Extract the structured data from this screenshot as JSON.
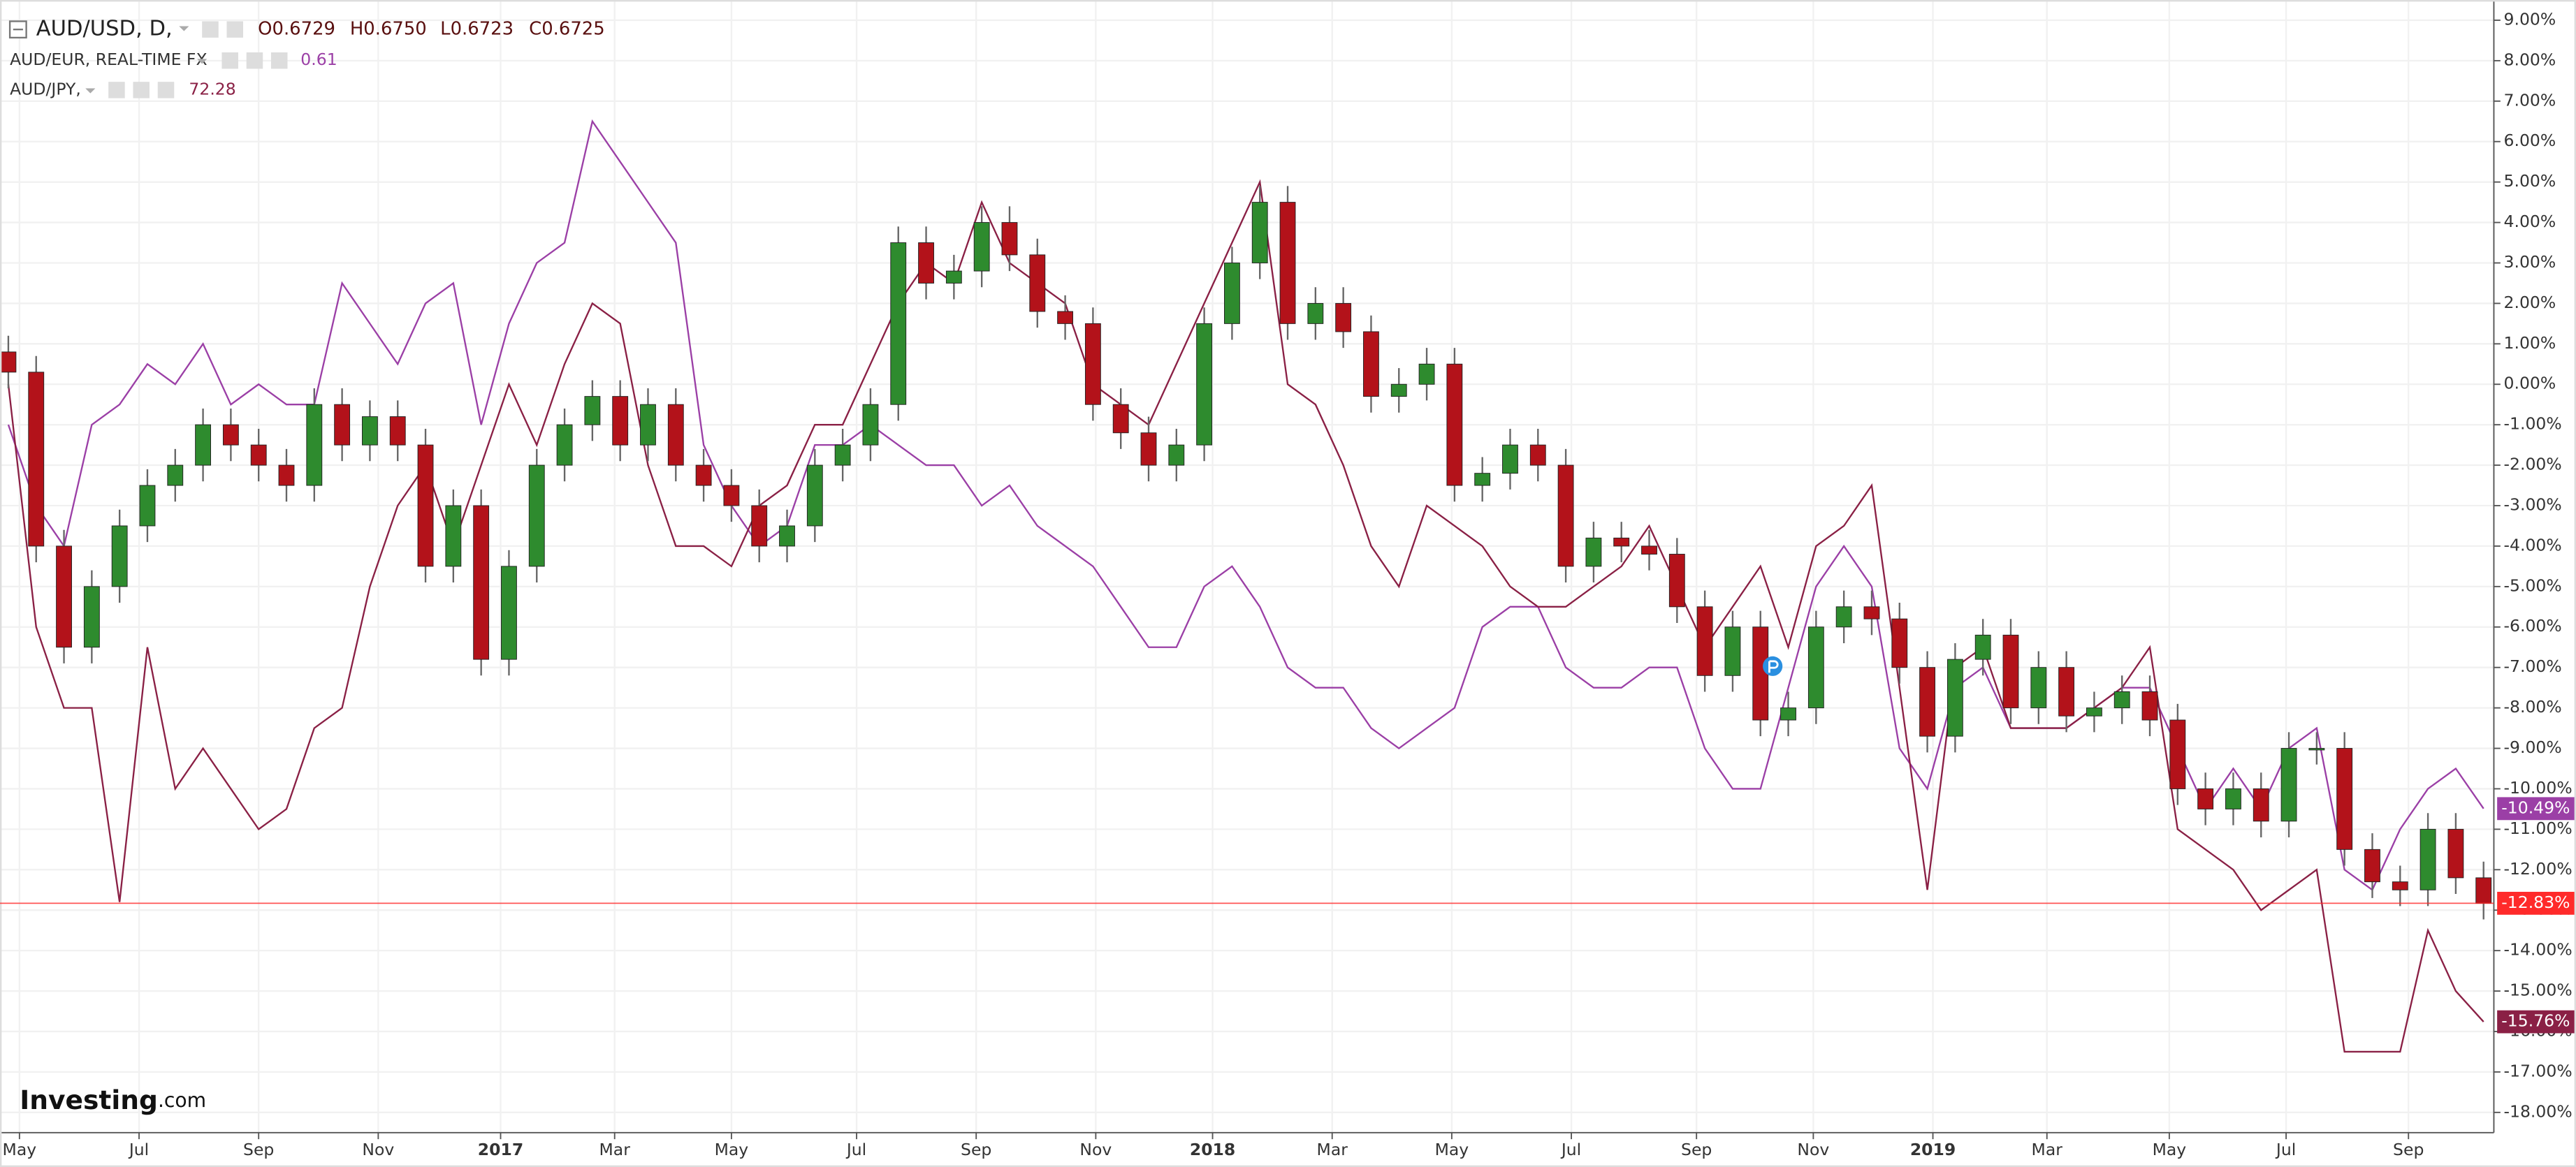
{
  "chart_data": {
    "type": "candlestick",
    "title": "AUD/USD, D,",
    "ohlc_labels": [
      "O0.6729",
      "H0.6750",
      "L0.6723",
      "C0.6725"
    ],
    "logo": [
      "Investing",
      ".com"
    ],
    "xlim": [
      -0.3,
      89.37
    ],
    "ylim": [
      -18.5,
      9.5
    ],
    "grid": true,
    "up_color": "#2e8b2e",
    "down_color": "#b3121a",
    "last_color": "#ff2a2a",
    "last_value_label": "-12.83%",
    "xticks": [
      {
        "value": 0.4,
        "label": "May"
      },
      {
        "value": 4.7,
        "label": "Jul"
      },
      {
        "value": 9.0,
        "label": "Sep"
      },
      {
        "value": 13.3,
        "label": "Nov"
      },
      {
        "value": 17.7,
        "label": "2017"
      },
      {
        "value": 21.8,
        "label": "Mar"
      },
      {
        "value": 26.0,
        "label": "May"
      },
      {
        "value": 30.5,
        "label": "Jul"
      },
      {
        "value": 34.8,
        "label": "Sep"
      },
      {
        "value": 39.1,
        "label": "Nov"
      },
      {
        "value": 43.3,
        "label": "2018"
      },
      {
        "value": 47.6,
        "label": "Mar"
      },
      {
        "value": 51.9,
        "label": "May"
      },
      {
        "value": 56.2,
        "label": "Jul"
      },
      {
        "value": 60.7,
        "label": "Sep"
      },
      {
        "value": 64.9,
        "label": "Nov"
      },
      {
        "value": 69.2,
        "label": "2019"
      },
      {
        "value": 73.3,
        "label": "Mar"
      },
      {
        "value": 77.7,
        "label": "May"
      },
      {
        "value": 81.9,
        "label": "Jul"
      },
      {
        "value": 86.3,
        "label": "Sep"
      }
    ],
    "yticks": [
      {
        "value": 9,
        "label": "9.00%"
      },
      {
        "value": 8,
        "label": "8.00%"
      },
      {
        "value": 7,
        "label": "7.00%"
      },
      {
        "value": 6,
        "label": "6.00%"
      },
      {
        "value": 5,
        "label": "5.00%"
      },
      {
        "value": 4,
        "label": "4.00%"
      },
      {
        "value": 3,
        "label": "3.00%"
      },
      {
        "value": 2,
        "label": "2.00%"
      },
      {
        "value": 1,
        "label": "1.00%"
      },
      {
        "value": 0,
        "label": "0.00%"
      },
      {
        "value": -1,
        "label": "-1.00%"
      },
      {
        "value": -2,
        "label": "-2.00%"
      },
      {
        "value": -3,
        "label": "-3.00%"
      },
      {
        "value": -4,
        "label": "-4.00%"
      },
      {
        "value": -5,
        "label": "-5.00%"
      },
      {
        "value": -6,
        "label": "-6.00%"
      },
      {
        "value": -7,
        "label": "-7.00%"
      },
      {
        "value": -8,
        "label": "-8.00%"
      },
      {
        "value": -9,
        "label": "-9.00%"
      },
      {
        "value": -10,
        "label": "-10.00%"
      },
      {
        "value": -11,
        "label": "-11.00%"
      },
      {
        "value": -12,
        "label": "-12.00%"
      },
      {
        "value": -13,
        "label": "-13.00%"
      },
      {
        "value": -14,
        "label": "-14.00%"
      },
      {
        "value": -15,
        "label": "-15.00%"
      },
      {
        "value": -16,
        "label": "-16.00%"
      },
      {
        "value": -17,
        "label": "-17.00%"
      },
      {
        "value": -18,
        "label": "-18.00%"
      }
    ],
    "open": [
      0.8,
      0.3,
      -4,
      -6.5,
      -5,
      -3.5,
      -2.5,
      -2,
      -1,
      -1.5,
      -2,
      -2.5,
      -0.5,
      -1.5,
      -0.8,
      -1.5,
      -4.5,
      -3,
      -6.8,
      -4.5,
      -2,
      -1,
      -0.3,
      -1.5,
      -0.5,
      -2,
      -2.5,
      -3,
      -4,
      -3.5,
      -2,
      -1.5,
      -0.5,
      3.5,
      2.5,
      2.8,
      4,
      3.2,
      1.8,
      1.5,
      -0.5,
      -1.2,
      -2,
      -1.5,
      1.5,
      3,
      4.5,
      1.5,
      2,
      1.3,
      -0.3,
      0,
      0.5,
      -2.5,
      -2.2,
      -1.5,
      -2,
      -4.5,
      -3.8,
      -4,
      -4.2,
      -5.5,
      -7.2,
      -6,
      -8.3,
      -8,
      -6,
      -5.5,
      -5.8,
      -7,
      -8.7,
      -6.8,
      -6.2,
      -8,
      -7,
      -8.2,
      -8,
      -7.6,
      -8.3,
      -10,
      -10.5,
      -10,
      -10.8,
      -9,
      -9,
      -11.5,
      -12.3,
      -12.5,
      -11,
      -12.2
    ],
    "high": [
      1.2,
      0.7,
      -3.6,
      -4.6,
      -3.1,
      -2.1,
      -1.6,
      -0.6,
      -0.6,
      -1.1,
      -1.6,
      -0.1,
      -0.1,
      -0.4,
      -0.4,
      -1.1,
      -2.6,
      -2.6,
      -4.1,
      -1.6,
      -0.6,
      0.1,
      0.1,
      -0.1,
      -0.1,
      -1.6,
      -2.1,
      -2.6,
      -3.1,
      -1.6,
      -1.1,
      -0.1,
      3.9,
      3.9,
      3.2,
      4.4,
      4.4,
      3.6,
      2.2,
      1.9,
      -0.1,
      -0.8,
      -1.1,
      1.9,
      3.4,
      4.9,
      4.9,
      2.4,
      2.4,
      1.7,
      0.4,
      0.9,
      0.9,
      -1.8,
      -1.1,
      -1.1,
      -1.6,
      -3.4,
      -3.4,
      -3.6,
      -3.8,
      -5.1,
      -5.6,
      -5.6,
      -7.6,
      -5.6,
      -5.1,
      -5.1,
      -5.4,
      -6.6,
      -6.4,
      -5.8,
      -5.8,
      -6.6,
      -6.6,
      -7.6,
      -7.2,
      -7.2,
      -7.9,
      -9.6,
      -9.6,
      -9.6,
      -8.6,
      -8.6,
      -8.6,
      -11.1,
      -11.9,
      -10.6,
      -10.6,
      -11.8
    ],
    "low": [
      -0.1,
      -4.4,
      -6.9,
      -6.9,
      -5.4,
      -3.9,
      -2.9,
      -2.4,
      -1.9,
      -2.4,
      -2.9,
      -2.9,
      -1.9,
      -1.9,
      -1.9,
      -4.9,
      -4.9,
      -7.2,
      -7.2,
      -4.9,
      -2.4,
      -1.4,
      -1.9,
      -1.9,
      -2.4,
      -2.9,
      -3.4,
      -4.4,
      -4.4,
      -3.9,
      -2.4,
      -1.9,
      -0.9,
      2.1,
      2.1,
      2.4,
      2.8,
      1.4,
      1.1,
      -0.9,
      -1.6,
      -2.4,
      -2.4,
      -1.9,
      1.1,
      2.6,
      1.1,
      1.1,
      0.9,
      -0.7,
      -0.7,
      -0.4,
      -2.9,
      -2.9,
      -2.6,
      -2.4,
      -4.9,
      -4.9,
      -4.4,
      -4.6,
      -5.9,
      -7.6,
      -7.6,
      -8.7,
      -8.7,
      -8.4,
      -6.4,
      -6.2,
      -7.4,
      -9.1,
      -9.1,
      -7.2,
      -8.4,
      -8.4,
      -8.6,
      -8.6,
      -8.4,
      -8.7,
      -10.4,
      -10.9,
      -10.9,
      -11.2,
      -11.2,
      -9.4,
      -11.9,
      -12.7,
      -12.9,
      -12.9,
      -12.6,
      -13.23
    ],
    "close": [
      0.3,
      -4,
      -6.5,
      -5,
      -3.5,
      -2.5,
      -2,
      -1,
      -1.5,
      -2,
      -2.5,
      -0.5,
      -1.5,
      -0.8,
      -1.5,
      -4.5,
      -3,
      -6.8,
      -4.5,
      -2,
      -1,
      -0.3,
      -1.5,
      -0.5,
      -2,
      -2.5,
      -3,
      -4,
      -3.5,
      -2,
      -1.5,
      -0.5,
      3.5,
      2.5,
      2.8,
      4,
      3.2,
      1.8,
      1.5,
      -0.5,
      -1.2,
      -2,
      -1.5,
      1.5,
      3,
      4.5,
      1.5,
      2,
      1.3,
      -0.3,
      0,
      0.5,
      -2.5,
      -2.2,
      -1.5,
      -2,
      -4.5,
      -3.8,
      -4,
      -4.2,
      -5.5,
      -7.2,
      -6,
      -8.3,
      -8,
      -6,
      -5.5,
      -5.8,
      -7,
      -8.7,
      -6.8,
      -6.2,
      -8,
      -7,
      -8.2,
      -8,
      -7.6,
      -8.3,
      -10,
      -10.5,
      -10,
      -10.8,
      -9,
      -9,
      -11.5,
      -12.3,
      -12.5,
      -11,
      -12.2,
      -12.83
    ],
    "series": [
      {
        "name": "AUD/EUR, REAL-TIME FX",
        "legend_value": "0.61",
        "color": "#9b3fa6",
        "last_value_label": "-10.49%",
        "values": [
          -1,
          -3,
          -4,
          -1,
          -0.5,
          0.5,
          0,
          1,
          -0.5,
          0,
          -0.5,
          -0.5,
          2.5,
          1.5,
          0.5,
          2,
          2.5,
          -1,
          1.5,
          3,
          3.5,
          6.5,
          5.5,
          4.5,
          3.5,
          -1.5,
          -3,
          -4,
          -3.5,
          -1.5,
          -1.5,
          -1,
          -1.5,
          -2,
          -2,
          -3,
          -2.5,
          -3.5,
          -4,
          -4.5,
          -5.5,
          -6.5,
          -6.5,
          -5,
          -4.5,
          -5.5,
          -7,
          -7.5,
          -7.5,
          -8.5,
          -9,
          -8.5,
          -8,
          -6,
          -5.5,
          -5.5,
          -7,
          -7.5,
          -7.5,
          -7,
          -7,
          -9,
          -10,
          -10,
          -7.5,
          -5,
          -4,
          -5,
          -9,
          -10,
          -7.5,
          -7,
          -8.5,
          -8.5,
          -8.5,
          -8,
          -7.5,
          -7.5,
          -9,
          -10.5,
          -9.5,
          -10.5,
          -9,
          -8.5,
          -12,
          -12.5,
          -11,
          -10,
          -9.5,
          -10.49
        ]
      },
      {
        "name": "AUD/JPY,",
        "legend_value": "72.28",
        "color": "#8a2045",
        "last_value_label": "-15.76%",
        "values": [
          0,
          -6,
          -8,
          -8,
          -12.8,
          -6.5,
          -10,
          -9,
          -10,
          -11,
          -10.5,
          -8.5,
          -8,
          -5,
          -3,
          -2,
          -4,
          -2,
          0,
          -1.5,
          0.5,
          2,
          1.5,
          -2,
          -4,
          -4,
          -4.5,
          -3,
          -2.5,
          -1,
          -1,
          0.5,
          2,
          3,
          2.5,
          4.5,
          3,
          2.5,
          2,
          0,
          -0.5,
          -1,
          0.5,
          2,
          3.5,
          5,
          0,
          -0.5,
          -2,
          -4,
          -5,
          -3,
          -3.5,
          -4,
          -5,
          -5.5,
          -5.5,
          -5,
          -4.5,
          -3.5,
          -5,
          -6.5,
          -5.5,
          -4.5,
          -6.5,
          -4,
          -3.5,
          -2.5,
          -7.5,
          -12.5,
          -7,
          -6.5,
          -8.5,
          -8.5,
          -8.5,
          -8,
          -7.5,
          -6.5,
          -11,
          -11.5,
          -12,
          -13,
          -12.5,
          -12,
          -16.5,
          -16.5,
          -16.5,
          -13.5,
          -15,
          -15.76
        ]
      }
    ]
  }
}
